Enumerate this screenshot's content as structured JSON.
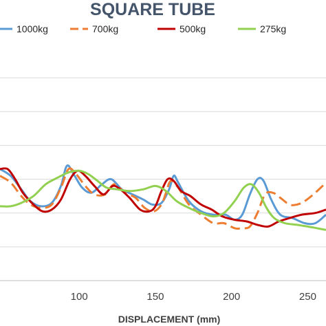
{
  "chart_data": {
    "type": "line",
    "title": "SQUARE TUBE",
    "xlabel": "DISPLACEMENT (mm)",
    "ylabel": "",
    "xlim": [
      48,
      262
    ],
    "ylim": [
      0,
      7
    ],
    "x_ticks": [
      100,
      150,
      200,
      250
    ],
    "grid": "horizontal",
    "legend_position": "top",
    "series": [
      {
        "name": "1000kg",
        "color": "#5b9bd5",
        "dash": "solid",
        "points": [
          [
            48,
            3.3
          ],
          [
            55,
            3.1
          ],
          [
            62,
            2.7
          ],
          [
            68,
            2.35
          ],
          [
            75,
            2.2
          ],
          [
            82,
            2.3
          ],
          [
            88,
            2.8
          ],
          [
            92,
            3.4
          ],
          [
            97,
            3.1
          ],
          [
            102,
            2.75
          ],
          [
            108,
            2.6
          ],
          [
            115,
            2.85
          ],
          [
            121,
            3.0
          ],
          [
            128,
            2.7
          ],
          [
            135,
            2.55
          ],
          [
            142,
            2.4
          ],
          [
            148,
            2.25
          ],
          [
            154,
            2.3
          ],
          [
            159,
            2.7
          ],
          [
            162,
            3.1
          ],
          [
            165,
            2.9
          ],
          [
            172,
            2.35
          ],
          [
            180,
            2.05
          ],
          [
            188,
            1.95
          ],
          [
            196,
            1.95
          ],
          [
            202,
            1.8
          ],
          [
            207,
            1.95
          ],
          [
            212,
            2.55
          ],
          [
            217,
            3.0
          ],
          [
            221,
            2.95
          ],
          [
            226,
            2.4
          ],
          [
            232,
            1.95
          ],
          [
            240,
            1.85
          ],
          [
            248,
            1.7
          ],
          [
            255,
            1.7
          ],
          [
            262,
            1.95
          ]
        ]
      },
      {
        "name": "700kg",
        "color": "#ed7d31",
        "dash": "dashed",
        "points": [
          [
            48,
            3.1
          ],
          [
            55,
            2.9
          ],
          [
            62,
            2.5
          ],
          [
            68,
            2.25
          ],
          [
            75,
            2.15
          ],
          [
            82,
            2.25
          ],
          [
            88,
            2.75
          ],
          [
            93,
            3.3
          ],
          [
            98,
            3.15
          ],
          [
            104,
            2.8
          ],
          [
            110,
            2.55
          ],
          [
            117,
            2.55
          ],
          [
            123,
            2.85
          ],
          [
            130,
            2.6
          ],
          [
            137,
            2.45
          ],
          [
            143,
            2.15
          ],
          [
            149,
            2.05
          ],
          [
            154,
            2.25
          ],
          [
            157,
            2.6
          ],
          [
            160,
            2.95
          ],
          [
            165,
            2.75
          ],
          [
            172,
            2.25
          ],
          [
            180,
            1.95
          ],
          [
            188,
            1.7
          ],
          [
            195,
            1.7
          ],
          [
            202,
            1.55
          ],
          [
            207,
            1.55
          ],
          [
            212,
            1.6
          ],
          [
            217,
            2.0
          ],
          [
            222,
            2.55
          ],
          [
            227,
            2.6
          ],
          [
            232,
            2.45
          ],
          [
            238,
            2.25
          ],
          [
            243,
            2.25
          ],
          [
            248,
            2.35
          ],
          [
            255,
            2.6
          ],
          [
            262,
            2.9
          ]
        ]
      },
      {
        "name": "500kg",
        "color": "#c00000",
        "dash": "solid",
        "points": [
          [
            48,
            3.3
          ],
          [
            53,
            3.3
          ],
          [
            58,
            3.0
          ],
          [
            63,
            2.6
          ],
          [
            70,
            2.25
          ],
          [
            76,
            2.05
          ],
          [
            82,
            2.1
          ],
          [
            88,
            2.4
          ],
          [
            94,
            3.0
          ],
          [
            99,
            3.25
          ],
          [
            104,
            3.1
          ],
          [
            110,
            2.8
          ],
          [
            116,
            2.55
          ],
          [
            122,
            2.8
          ],
          [
            127,
            2.7
          ],
          [
            133,
            2.45
          ],
          [
            140,
            2.1
          ],
          [
            146,
            2.05
          ],
          [
            150,
            2.2
          ],
          [
            154,
            2.65
          ],
          [
            158,
            3.0
          ],
          [
            162,
            2.95
          ],
          [
            167,
            2.65
          ],
          [
            173,
            2.5
          ],
          [
            180,
            2.25
          ],
          [
            187,
            2.1
          ],
          [
            194,
            1.9
          ],
          [
            202,
            1.8
          ],
          [
            210,
            1.75
          ],
          [
            217,
            1.65
          ],
          [
            224,
            1.6
          ],
          [
            231,
            1.75
          ],
          [
            238,
            1.85
          ],
          [
            246,
            1.95
          ],
          [
            255,
            2.0
          ],
          [
            262,
            2.1
          ]
        ]
      },
      {
        "name": "275kg",
        "color": "#92d050",
        "dash": "solid",
        "points": [
          [
            48,
            2.2
          ],
          [
            55,
            2.2
          ],
          [
            62,
            2.3
          ],
          [
            70,
            2.5
          ],
          [
            78,
            2.85
          ],
          [
            86,
            3.05
          ],
          [
            93,
            3.2
          ],
          [
            100,
            3.25
          ],
          [
            106,
            3.15
          ],
          [
            112,
            2.95
          ],
          [
            118,
            2.75
          ],
          [
            125,
            2.7
          ],
          [
            133,
            2.65
          ],
          [
            142,
            2.7
          ],
          [
            150,
            2.8
          ],
          [
            157,
            2.65
          ],
          [
            164,
            2.35
          ],
          [
            172,
            2.15
          ],
          [
            180,
            2.0
          ],
          [
            188,
            1.9
          ],
          [
            195,
            2.0
          ],
          [
            202,
            2.35
          ],
          [
            208,
            2.75
          ],
          [
            213,
            2.85
          ],
          [
            218,
            2.6
          ],
          [
            223,
            2.15
          ],
          [
            228,
            1.85
          ],
          [
            235,
            1.7
          ],
          [
            243,
            1.65
          ],
          [
            250,
            1.6
          ],
          [
            256,
            1.55
          ],
          [
            262,
            1.5
          ]
        ]
      }
    ]
  }
}
